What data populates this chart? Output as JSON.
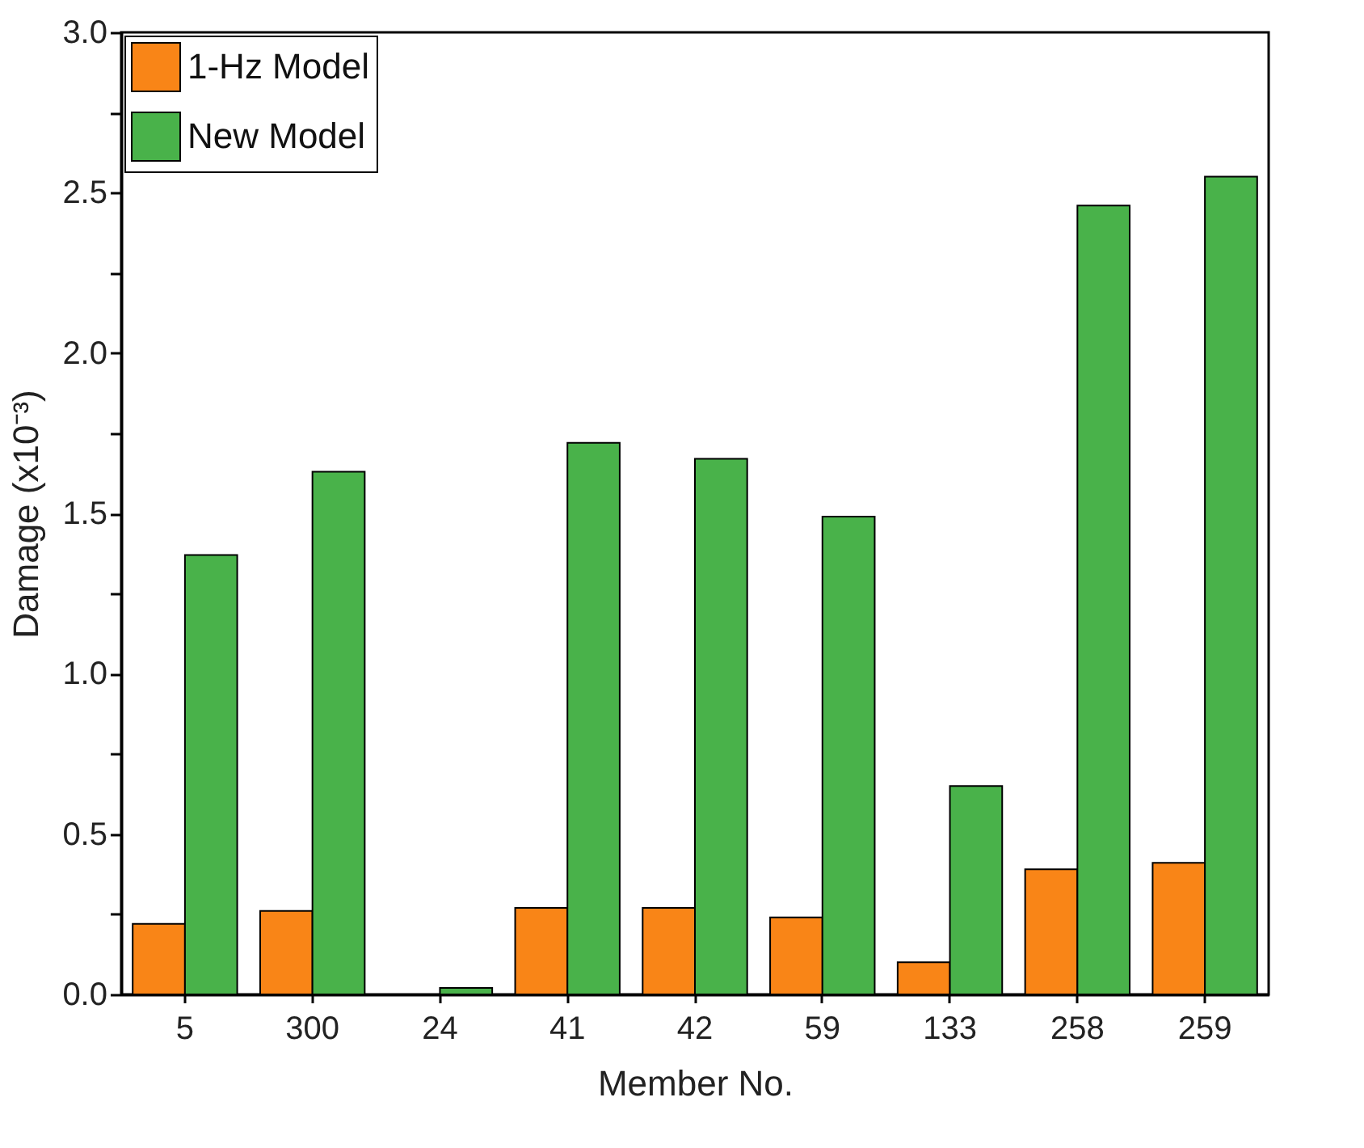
{
  "chart_data": {
    "type": "bar",
    "xlabel": "Member No.",
    "ylabel": "Damage (x10⁻³)",
    "categories": [
      "5",
      "300",
      "24",
      "41",
      "42",
      "59",
      "133",
      "258",
      "259"
    ],
    "series": [
      {
        "name": "1-Hz Model",
        "color": "#f98517",
        "values": [
          0.22,
          0.26,
          null,
          0.27,
          0.27,
          0.24,
          0.1,
          0.39,
          0.41
        ]
      },
      {
        "name": "New Model",
        "color": "#49b24a",
        "values": [
          1.37,
          1.63,
          0.02,
          1.72,
          1.67,
          1.49,
          0.65,
          2.46,
          2.55
        ]
      }
    ],
    "ylim": [
      0,
      3.0
    ],
    "yticks": [
      {
        "value": 0,
        "label": "0.0"
      },
      {
        "value": 0.25,
        "label": null
      },
      {
        "value": 0.5,
        "label": "0.5"
      },
      {
        "value": 0.75,
        "label": null
      },
      {
        "value": 1,
        "label": "1.0"
      },
      {
        "value": 1.25,
        "label": null
      },
      {
        "value": 1.5,
        "label": "1.5"
      },
      {
        "value": 1.75,
        "label": null
      },
      {
        "value": 2,
        "label": "2.0"
      },
      {
        "value": 2.25,
        "label": null
      },
      {
        "value": 2.5,
        "label": "2.5"
      },
      {
        "value": 2.75,
        "label": null
      },
      {
        "value": 3,
        "label": "3.0"
      }
    ],
    "legend": "top left",
    "grid": false
  }
}
